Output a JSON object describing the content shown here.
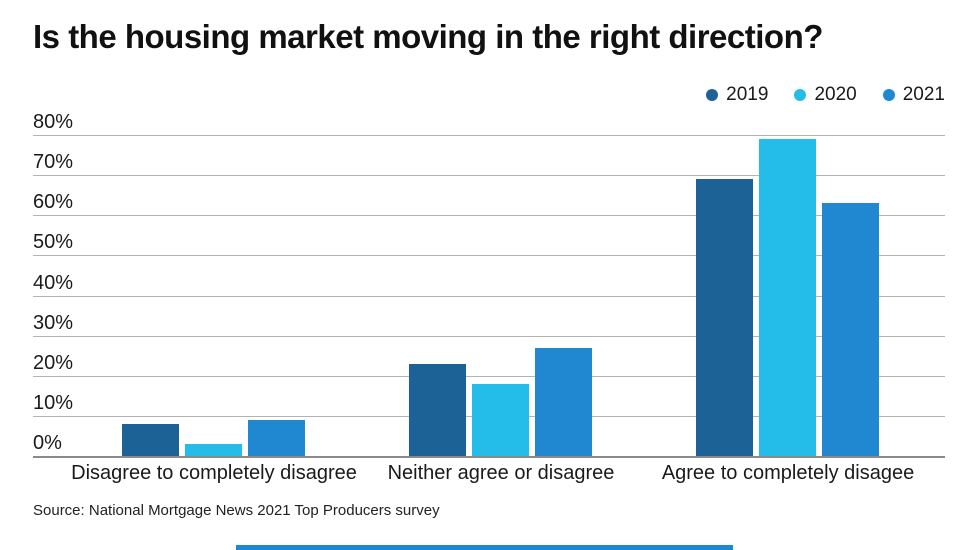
{
  "title": "Is the housing market moving in the right direction?",
  "source": "Source: National Mortgage News 2021 Top Producers survey",
  "legend": [
    {
      "label": "2019",
      "color": "#1d6296"
    },
    {
      "label": "2020",
      "color": "#24bce9"
    },
    {
      "label": "2021",
      "color": "#2087d1"
    }
  ],
  "chart_data": {
    "type": "bar",
    "title": "Is the housing market moving in the right direction?",
    "categories": [
      "Disagree to completely disagree",
      "Neither agree or disagree",
      "Agree to completely disagee"
    ],
    "series": [
      {
        "name": "2019",
        "color": "#1d6296",
        "values": [
          8,
          23,
          69
        ]
      },
      {
        "name": "2020",
        "color": "#24bce9",
        "values": [
          3,
          18,
          79
        ]
      },
      {
        "name": "2021",
        "color": "#2087d1",
        "values": [
          9,
          27,
          63
        ]
      }
    ],
    "xlabel": "",
    "ylabel": "",
    "ylim": [
      0,
      80
    ],
    "ytick_step": 10,
    "ytick_labels": [
      "0%",
      "10%",
      "20%",
      "30%",
      "40%",
      "50%",
      "60%",
      "70%",
      "80%"
    ],
    "grid": true,
    "legend_position": "top-right"
  },
  "colors": {
    "gridline": "#b3b3b3",
    "baseline": "#8a8a8a",
    "title_text": "#111111",
    "bottom_bar": "#2087d1"
  }
}
